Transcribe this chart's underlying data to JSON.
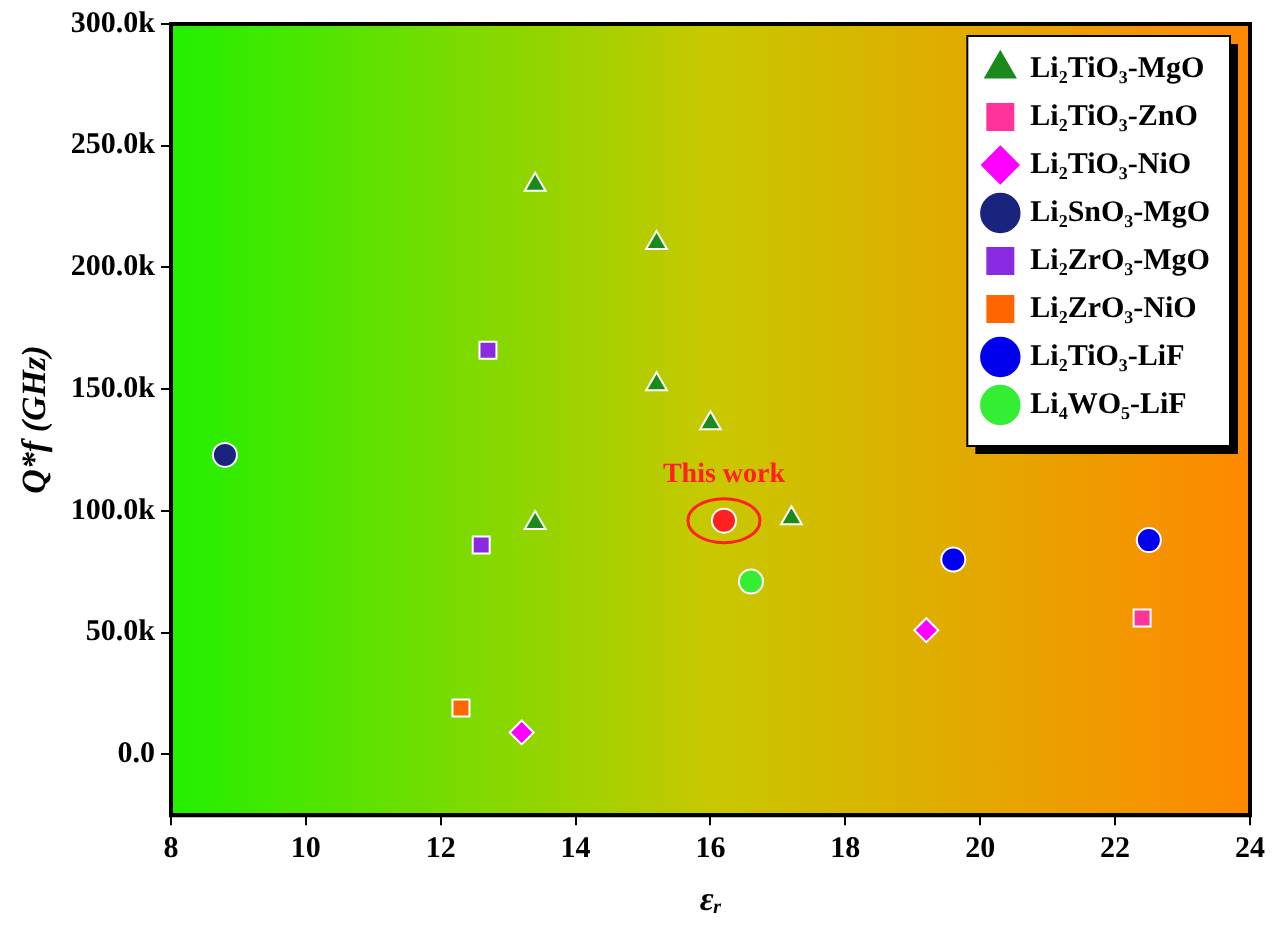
{
  "chart_data": {
    "type": "scatter",
    "xlabel": "εᵣ",
    "ylabel": "Q*f (GHz)",
    "xlim": [
      8,
      24
    ],
    "xticks": [
      8,
      10,
      12,
      14,
      16,
      18,
      20,
      22,
      24
    ],
    "ylim": [
      -25000,
      300000
    ],
    "yticks": [
      {
        "value": 0,
        "label": "0.0"
      },
      {
        "value": 50000,
        "label": "50.0k"
      },
      {
        "value": 100000,
        "label": "100.0k"
      },
      {
        "value": 150000,
        "label": "150.0k"
      },
      {
        "value": 200000,
        "label": "200.0k"
      },
      {
        "value": 250000,
        "label": "250.0k"
      },
      {
        "value": 300000,
        "label": "300.0k"
      }
    ],
    "grid": false,
    "legend": "top right",
    "series": [
      {
        "name": "Li₂TiO₃-MgO",
        "color": "#1a8a1a",
        "marker": "triangle",
        "x": [
          13.4,
          13.4,
          15.2,
          15.2,
          16.0,
          17.2
        ],
        "values": [
          234000,
          95000,
          210000,
          152000,
          136000,
          97000
        ]
      },
      {
        "name": "Li₂TiO₃-ZnO",
        "color": "#ff3399",
        "marker": "square",
        "x": [
          22.4
        ],
        "values": [
          56000
        ]
      },
      {
        "name": "Li₂TiO₃-NiO",
        "color": "#ff00ff",
        "marker": "diamond",
        "x": [
          13.2,
          19.2
        ],
        "values": [
          9000,
          51000
        ]
      },
      {
        "name": "Li₂SnO₃-MgO",
        "color": "#1a237e",
        "marker": "circle",
        "x": [
          8.8
        ],
        "values": [
          123000
        ]
      },
      {
        "name": "Li₂ZrO₃-MgO",
        "color": "#8a2be2",
        "marker": "square",
        "x": [
          12.7,
          12.6
        ],
        "values": [
          166000,
          86000
        ]
      },
      {
        "name": "Li₂ZrO₃-NiO",
        "color": "#ff6600",
        "marker": "square",
        "x": [
          12.3
        ],
        "values": [
          19000
        ]
      },
      {
        "name": "Li₂TiO₃-LiF",
        "color": "#0000ee",
        "marker": "circle",
        "x": [
          19.6,
          22.5
        ],
        "values": [
          80000,
          88000
        ]
      },
      {
        "name": "Li₄WO₅-LiF",
        "color": "#33ee33",
        "marker": "circle",
        "x": [
          16.6
        ],
        "values": [
          71000
        ]
      },
      {
        "color": "#ff2020",
        "x": [
          16.2
        ],
        "values": [
          96000
        ]
      }
    ],
    "annotations": [
      {
        "text": "This work",
        "x": 16.2,
        "y": 96000
      }
    ]
  }
}
